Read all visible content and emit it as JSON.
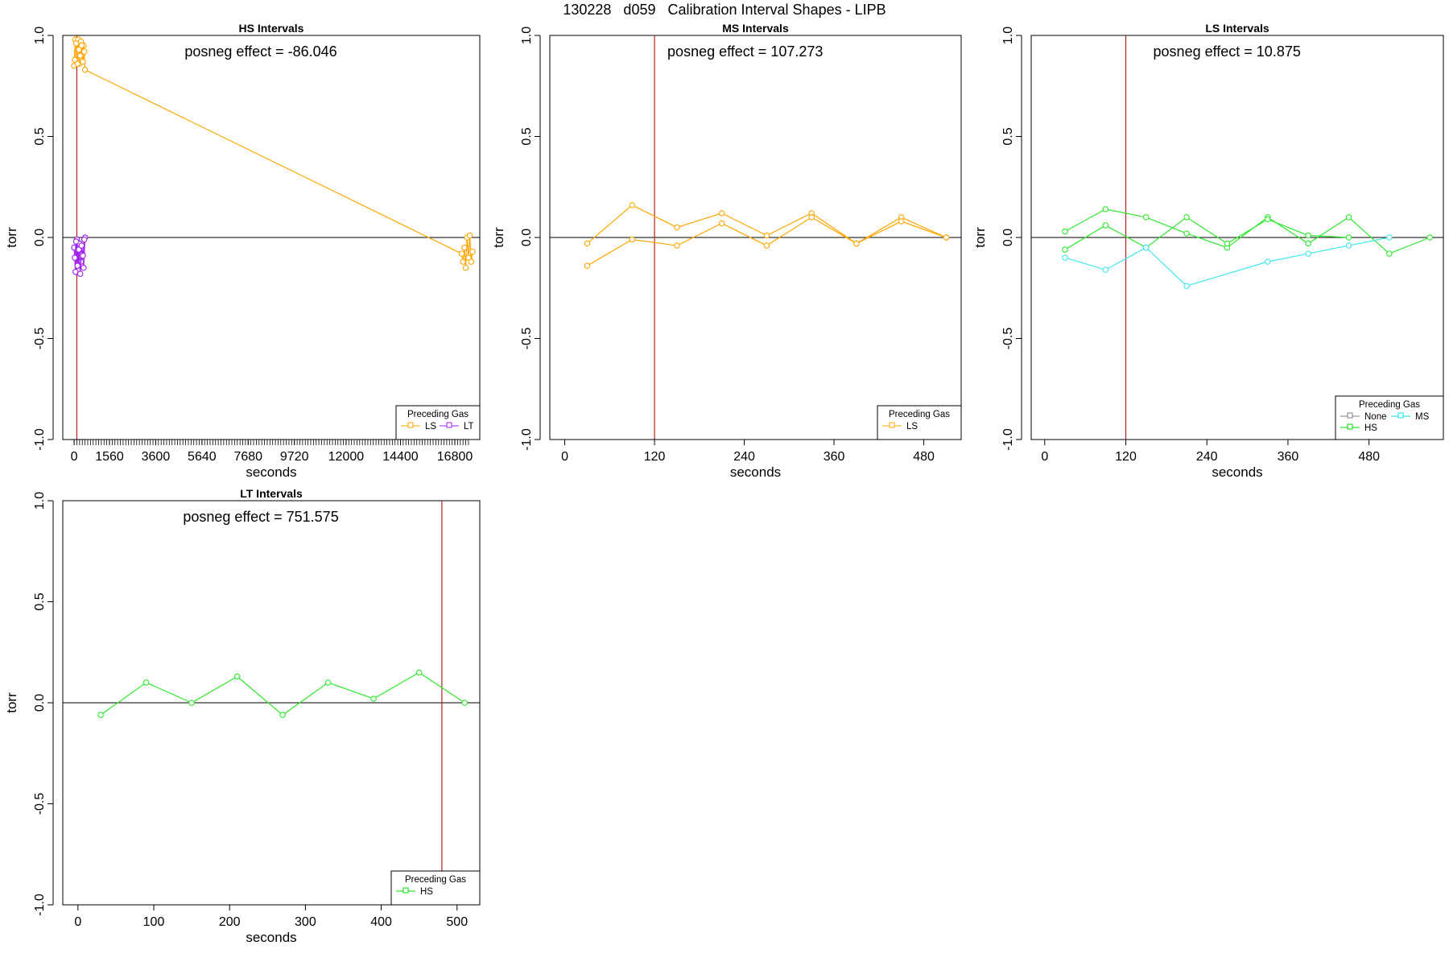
{
  "figure_title": "130228   d059   Calibration Interval Shapes - LIPB",
  "chart_data": [
    {
      "id": "hs",
      "type": "line",
      "title": "HS Intervals",
      "xlabel": "seconds",
      "ylabel": "torr",
      "annotation": "posneg effect = -86.046",
      "xlim": [
        -500,
        17900
      ],
      "ylim": [
        -1.0,
        1.0
      ],
      "xticks": [
        0,
        1560,
        3600,
        5640,
        7680,
        9720,
        12000,
        14400,
        16800
      ],
      "xticklabels": [
        "0",
        "1560",
        "3600",
        "5640",
        "7680",
        "9720",
        "12000",
        "14400",
        "16800"
      ],
      "minor_xticks_dense_end": 17400,
      "minor_xticks_step": 120,
      "yticks": [
        -1.0,
        -0.5,
        0.0,
        0.5,
        1.0
      ],
      "yticklabels": [
        "-1.0",
        "-0.5",
        "0.0",
        "0.5",
        "1.0"
      ],
      "hline": 0,
      "vline": 120,
      "legend": {
        "title": "Preceding Gas",
        "entries": [
          {
            "label": "LS",
            "color": "#FFA500"
          },
          {
            "label": "LT",
            "color": "#A020F0"
          }
        ]
      },
      "series": [
        {
          "name": "LS",
          "color": "#FFA500",
          "x": [
            0,
            60,
            120,
            180,
            240,
            300,
            360,
            420,
            480,
            17100,
            17160,
            17220,
            17280,
            17340,
            17400,
            17460,
            17520,
            17580
          ],
          "y": [
            0.85,
            0.98,
            0.92,
            0.98,
            0.86,
            0.97,
            0.9,
            0.95,
            0.83,
            -0.08,
            -0.12,
            -0.05,
            -0.15,
            0.0,
            -0.1,
            0.01,
            -0.12,
            -0.07
          ]
        },
        {
          "name": "LS",
          "color": "#FFA500",
          "x": [
            30,
            90,
            150,
            210,
            270,
            330,
            390,
            450
          ],
          "y": [
            0.88,
            0.96,
            0.86,
            0.93,
            0.9,
            0.95,
            0.87,
            0.92
          ]
        },
        {
          "name": "LT",
          "color": "#A020F0",
          "x": [
            0,
            60,
            120,
            180,
            240,
            300,
            360,
            420,
            480
          ],
          "y": [
            -0.05,
            -0.17,
            -0.01,
            -0.13,
            -0.03,
            -0.12,
            -0.08,
            -0.15,
            0.0
          ]
        },
        {
          "name": "LT",
          "color": "#A020F0",
          "x": [
            30,
            90,
            150,
            210,
            270,
            330,
            390,
            450
          ],
          "y": [
            -0.1,
            -0.02,
            -0.14,
            -0.06,
            -0.18,
            -0.04,
            -0.09,
            -0.01
          ]
        }
      ]
    },
    {
      "id": "ms",
      "type": "line",
      "title": "MS Intervals",
      "xlabel": "seconds",
      "ylabel": "torr",
      "annotation": "posneg effect = 107.273",
      "xlim": [
        -20,
        530
      ],
      "ylim": [
        -1.0,
        1.0
      ],
      "xticks": [
        0,
        120,
        240,
        360,
        480
      ],
      "xticklabels": [
        "0",
        "120",
        "240",
        "360",
        "480"
      ],
      "yticks": [
        -1.0,
        -0.5,
        0.0,
        0.5,
        1.0
      ],
      "yticklabels": [
        "-1.0",
        "-0.5",
        "0.0",
        "0.5",
        "1.0"
      ],
      "hline": 0,
      "vline": 120,
      "legend": {
        "title": "Preceding Gas",
        "entries": [
          {
            "label": "LS",
            "color": "#FFA500"
          }
        ]
      },
      "series": [
        {
          "name": "LS",
          "color": "#FFA500",
          "x": [
            30,
            90,
            150,
            210,
            270,
            330,
            390,
            450,
            510
          ],
          "y": [
            -0.03,
            0.16,
            0.05,
            0.12,
            0.01,
            0.12,
            -0.03,
            0.1,
            0.0
          ]
        },
        {
          "name": "LS",
          "color": "#FFA500",
          "x": [
            30,
            90,
            150,
            210,
            270,
            330,
            390,
            450,
            510
          ],
          "y": [
            -0.14,
            -0.01,
            -0.04,
            0.07,
            -0.04,
            0.1,
            -0.03,
            0.08,
            0.0
          ]
        }
      ]
    },
    {
      "id": "ls",
      "type": "line",
      "title": "LS Intervals",
      "xlabel": "seconds",
      "ylabel": "torr",
      "annotation": "posneg effect = 10.875",
      "xlim": [
        -20,
        590
      ],
      "ylim": [
        -1.0,
        1.0
      ],
      "xticks": [
        0,
        120,
        240,
        360,
        480
      ],
      "xticklabels": [
        "0",
        "120",
        "240",
        "360",
        "480"
      ],
      "yticks": [
        -1.0,
        -0.5,
        0.0,
        0.5,
        1.0
      ],
      "yticklabels": [
        "-1.0",
        "-0.5",
        "0.0",
        "0.5",
        "1.0"
      ],
      "hline": 0,
      "vline": 120,
      "legend": {
        "title": "Preceding Gas",
        "entries": [
          {
            "label": "None",
            "color": "#808080"
          },
          {
            "label": "MS",
            "color": "#00E5EE"
          },
          {
            "label": "HS",
            "color": "#00DD00"
          }
        ]
      },
      "series": [
        {
          "name": "HS",
          "color": "#2EE82E",
          "x": [
            30,
            90,
            150,
            210,
            270,
            330,
            390,
            450,
            510,
            570
          ],
          "y": [
            0.03,
            0.14,
            0.1,
            0.02,
            -0.05,
            0.1,
            -0.03,
            0.1,
            -0.08,
            0.0
          ]
        },
        {
          "name": "HS",
          "color": "#2EE82E",
          "x": [
            30,
            90,
            150,
            210,
            270,
            330,
            390,
            450
          ],
          "y": [
            -0.06,
            0.06,
            -0.05,
            0.1,
            -0.03,
            0.09,
            0.01,
            0.0
          ]
        },
        {
          "name": "MS",
          "color": "#40E8EE",
          "x": [
            30,
            90,
            150,
            210,
            330,
            390,
            450,
            510
          ],
          "y": [
            -0.1,
            -0.16,
            -0.05,
            -0.24,
            -0.12,
            -0.08,
            -0.04,
            0.0
          ]
        }
      ]
    },
    {
      "id": "lt",
      "type": "line",
      "title": "LT Intervals",
      "xlabel": "seconds",
      "ylabel": "torr",
      "annotation": "posneg effect = 751.575",
      "xlim": [
        -20,
        530
      ],
      "ylim": [
        -1.0,
        1.0
      ],
      "xticks": [
        0,
        100,
        200,
        300,
        400,
        500
      ],
      "xticklabels": [
        "0",
        "100",
        "200",
        "300",
        "400",
        "500"
      ],
      "yticks": [
        -1.0,
        -0.5,
        0.0,
        0.5,
        1.0
      ],
      "yticklabels": [
        "-1.0",
        "-0.5",
        "0.0",
        "0.5",
        "1.0"
      ],
      "hline": 0,
      "vline": 480,
      "legend": {
        "title": "Preceding Gas",
        "entries": [
          {
            "label": "HS",
            "color": "#00DD00"
          }
        ]
      },
      "series": [
        {
          "name": "HS",
          "color": "#2EE82E",
          "x": [
            30,
            90,
            150,
            210,
            270,
            330,
            390,
            450,
            510
          ],
          "y": [
            -0.06,
            0.1,
            0.0,
            0.13,
            -0.06,
            0.1,
            0.02,
            0.15,
            0.0
          ]
        }
      ]
    }
  ]
}
